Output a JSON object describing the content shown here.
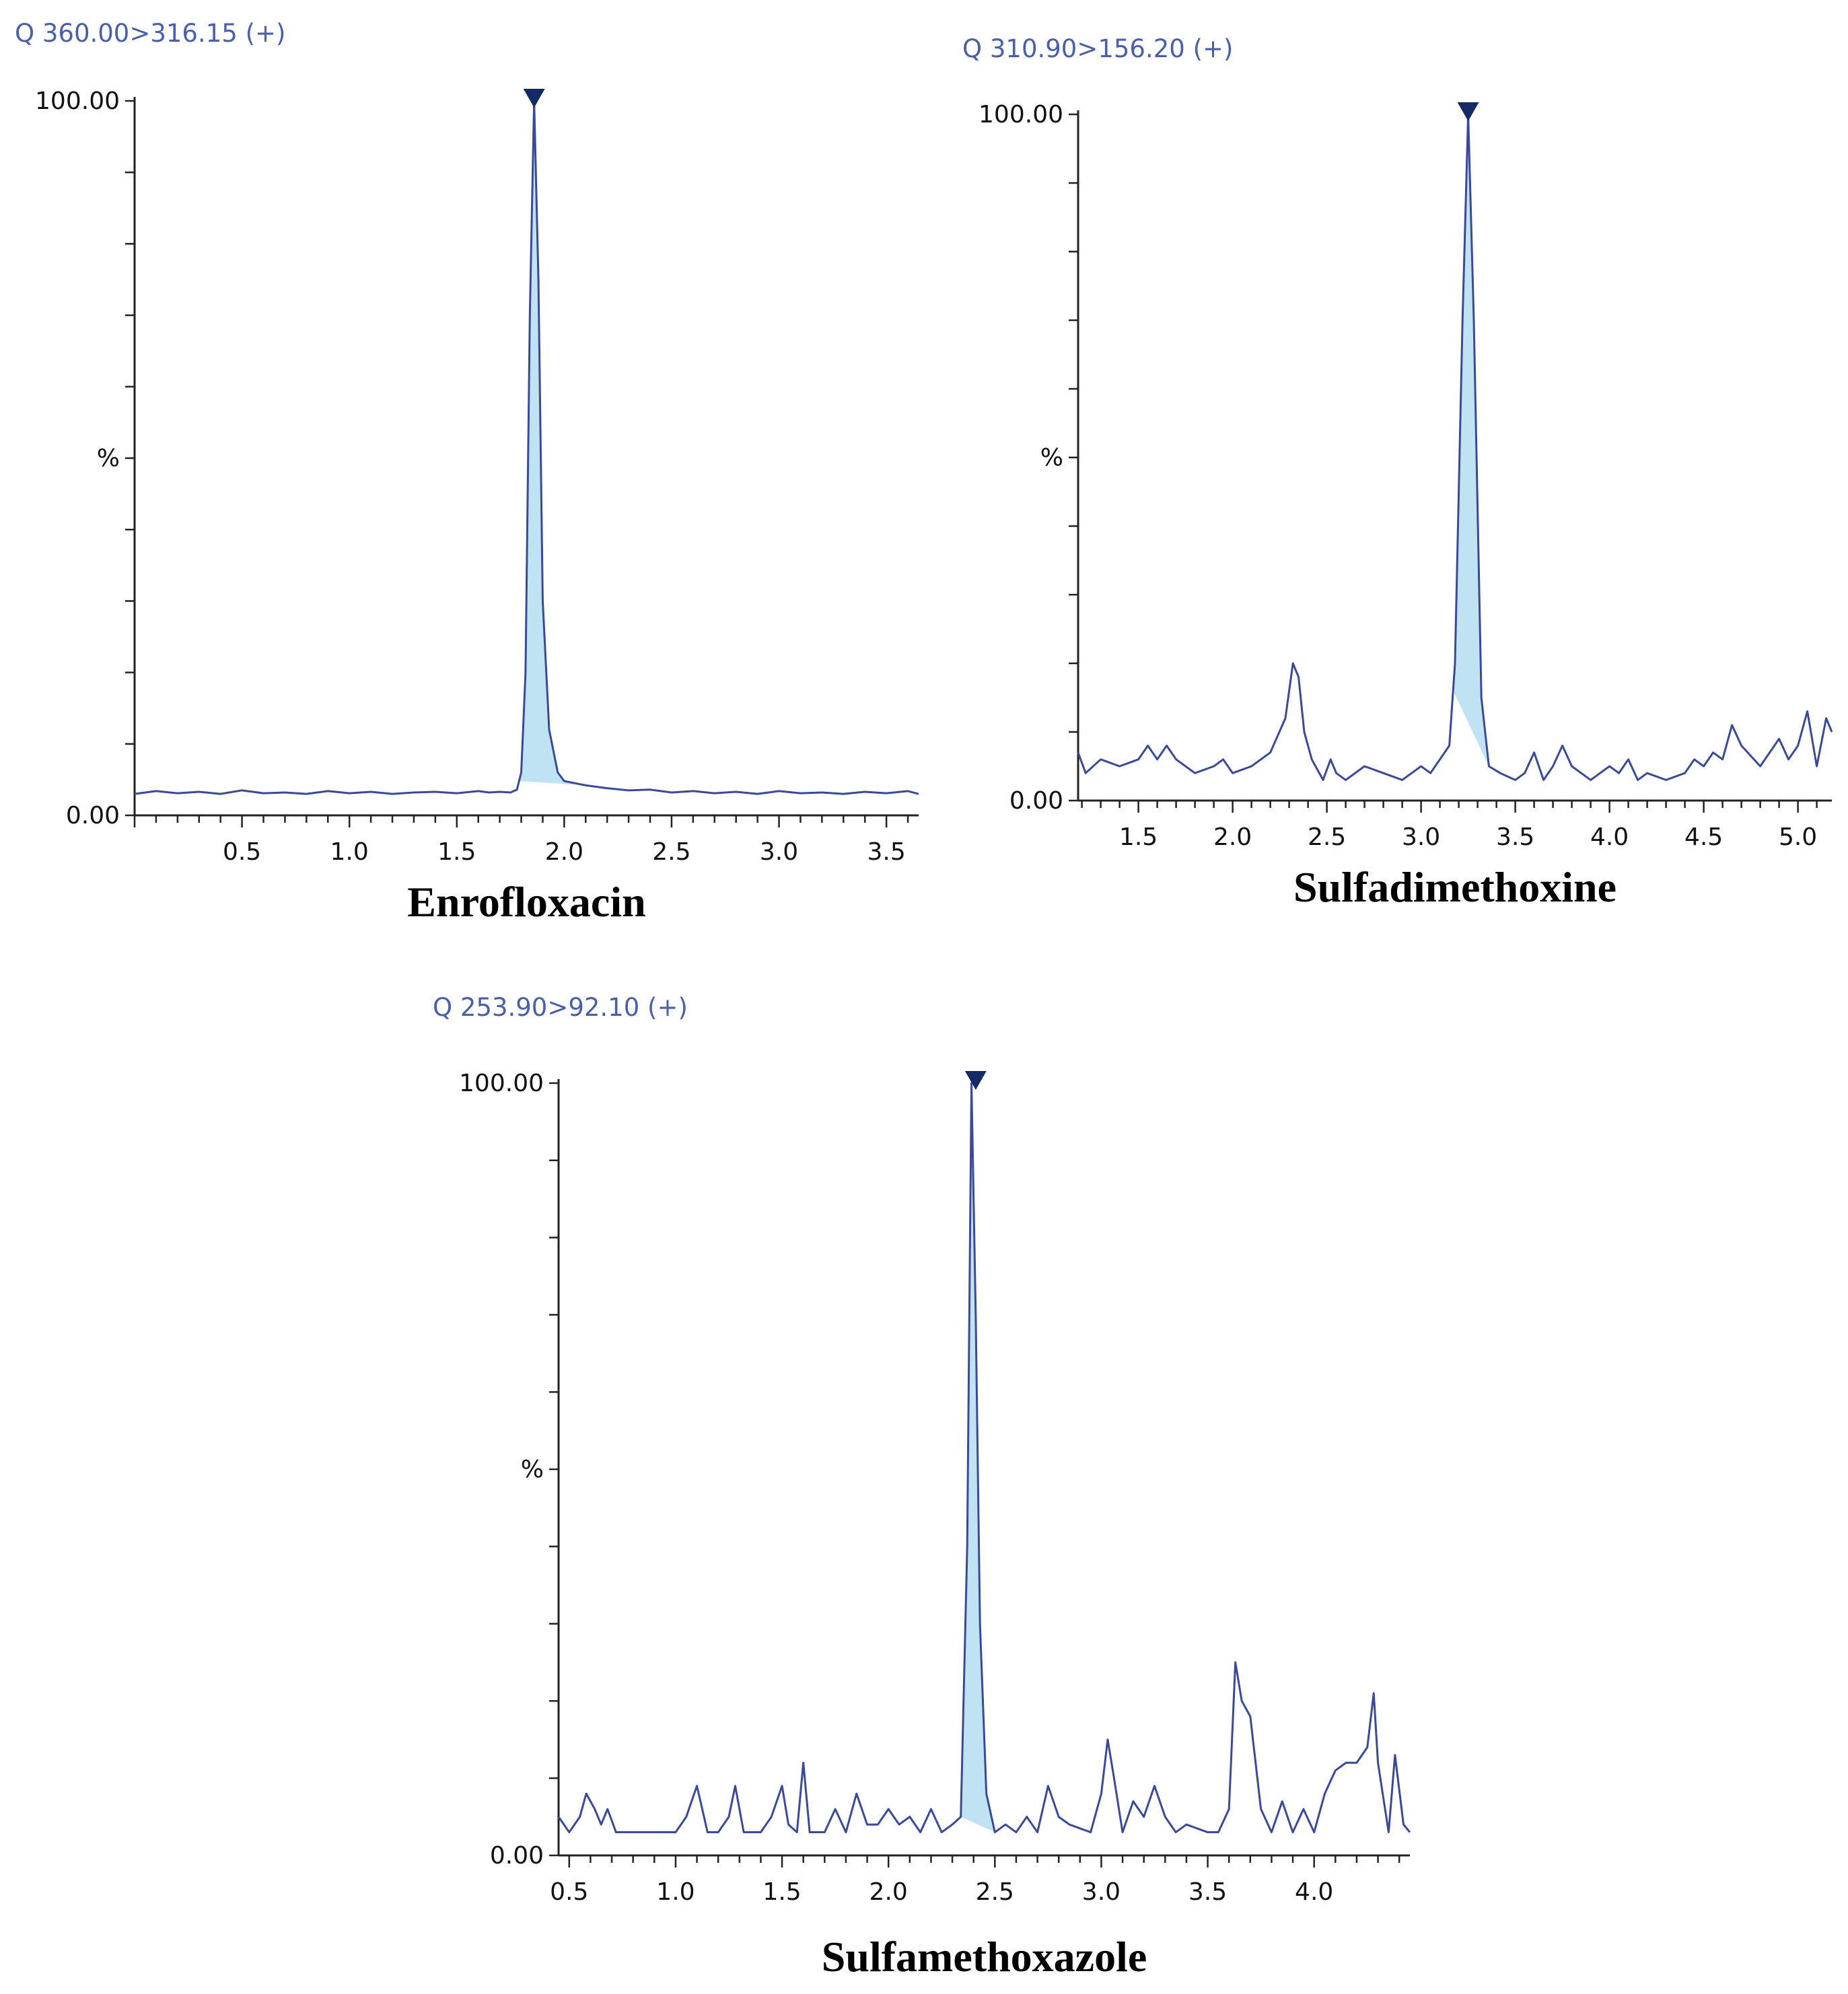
{
  "chart_data": [
    {
      "type": "line",
      "channel": "Q 360.00>316.15 (+)",
      "title": "Enrofloxacin",
      "ylabel": "%",
      "y_tick_labels": [
        "100.00",
        "0.00"
      ],
      "x_tick_labels": [
        "0.5",
        "1.0",
        "1.5",
        "2.0",
        "2.5",
        "3.0",
        "3.5"
      ],
      "xlim": [
        0.0,
        3.65
      ],
      "ylim": [
        0,
        100
      ],
      "peak_marker_x": 1.86,
      "peak_shaded_range": [
        1.79,
        2.1
      ],
      "series": [
        {
          "x": [
            0.0,
            0.1,
            0.2,
            0.3,
            0.4,
            0.5,
            0.6,
            0.7,
            0.8,
            0.9,
            1.0,
            1.1,
            1.2,
            1.3,
            1.4,
            1.5,
            1.6,
            1.65,
            1.7,
            1.75,
            1.78,
            1.8,
            1.82,
            1.84,
            1.86,
            1.88,
            1.9,
            1.93,
            1.97,
            2.0,
            2.05,
            2.1,
            2.15,
            2.2,
            2.3,
            2.4,
            2.5,
            2.6,
            2.7,
            2.8,
            2.9,
            3.0,
            3.1,
            3.2,
            3.3,
            3.4,
            3.5,
            3.6,
            3.65
          ],
          "y": [
            3.0,
            3.4,
            3.1,
            3.3,
            3.0,
            3.5,
            3.1,
            3.2,
            3.0,
            3.4,
            3.1,
            3.3,
            3.0,
            3.2,
            3.3,
            3.1,
            3.4,
            3.2,
            3.3,
            3.2,
            3.6,
            6,
            20,
            70,
            100,
            75,
            30,
            12,
            6,
            4.8,
            4.5,
            4.2,
            4.0,
            3.8,
            3.5,
            3.6,
            3.2,
            3.4,
            3.1,
            3.3,
            3.0,
            3.4,
            3.1,
            3.2,
            3.0,
            3.3,
            3.1,
            3.4,
            3.0
          ]
        }
      ]
    },
    {
      "type": "line",
      "channel": "Q 310.90>156.20 (+)",
      "title": "Sulfadimethoxine",
      "ylabel": "%",
      "y_tick_labels": [
        "100.00",
        "0.00"
      ],
      "x_tick_labels": [
        "1.5",
        "2.0",
        "2.5",
        "3.0",
        "3.5",
        "4.0",
        "4.5",
        "5.0"
      ],
      "xlim": [
        1.18,
        5.18
      ],
      "ylim": [
        0,
        100
      ],
      "peak_marker_x": 3.25,
      "peak_shaded_range": [
        3.17,
        3.36
      ],
      "series": [
        {
          "x": [
            1.18,
            1.22,
            1.3,
            1.4,
            1.5,
            1.55,
            1.6,
            1.65,
            1.7,
            1.8,
            1.9,
            1.95,
            2.0,
            2.1,
            2.2,
            2.28,
            2.32,
            2.35,
            2.38,
            2.42,
            2.48,
            2.52,
            2.55,
            2.6,
            2.7,
            2.8,
            2.9,
            2.95,
            3.0,
            3.05,
            3.1,
            3.15,
            3.18,
            3.22,
            3.25,
            3.28,
            3.32,
            3.36,
            3.42,
            3.5,
            3.55,
            3.6,
            3.65,
            3.7,
            3.75,
            3.8,
            3.9,
            4.0,
            4.05,
            4.1,
            4.15,
            4.2,
            4.3,
            4.4,
            4.45,
            4.5,
            4.55,
            4.6,
            4.65,
            4.7,
            4.8,
            4.85,
            4.9,
            4.95,
            5.0,
            5.05,
            5.1,
            5.15,
            5.18
          ],
          "y": [
            7,
            4,
            6,
            5,
            6,
            8,
            6,
            8,
            6,
            4,
            5,
            6,
            4,
            5,
            7,
            12,
            20,
            18,
            10,
            6,
            3,
            6,
            4,
            3,
            5,
            4,
            3,
            4,
            5,
            4,
            6,
            8,
            20,
            70,
            100,
            70,
            15,
            5,
            4,
            3,
            4,
            7,
            3,
            5,
            8,
            5,
            3,
            5,
            4,
            6,
            3,
            4,
            3,
            4,
            6,
            5,
            7,
            6,
            11,
            8,
            5,
            7,
            9,
            6,
            8,
            13,
            5,
            12,
            10
          ]
        }
      ]
    },
    {
      "type": "line",
      "channel": "Q 253.90>92.10 (+)",
      "title": "Sulfamethoxazole",
      "ylabel": "%",
      "y_tick_labels": [
        "100.00",
        "0.00"
      ],
      "x_tick_labels": [
        "0.5",
        "1.0",
        "1.5",
        "2.0",
        "2.5",
        "3.0",
        "3.5",
        "4.0"
      ],
      "xlim": [
        0.45,
        4.45
      ],
      "ylim": [
        0,
        100
      ],
      "peak_marker_x": 2.41,
      "peak_shaded_range": [
        2.34,
        2.5
      ],
      "series": [
        {
          "x": [
            0.45,
            0.5,
            0.55,
            0.58,
            0.62,
            0.65,
            0.68,
            0.72,
            0.78,
            0.9,
            1.0,
            1.05,
            1.1,
            1.15,
            1.2,
            1.25,
            1.28,
            1.32,
            1.4,
            1.45,
            1.5,
            1.53,
            1.57,
            1.6,
            1.63,
            1.7,
            1.75,
            1.8,
            1.85,
            1.9,
            1.95,
            2.0,
            2.05,
            2.1,
            2.15,
            2.2,
            2.25,
            2.3,
            2.34,
            2.37,
            2.39,
            2.41,
            2.43,
            2.46,
            2.5,
            2.55,
            2.6,
            2.65,
            2.7,
            2.75,
            2.8,
            2.85,
            2.95,
            3.0,
            3.03,
            3.06,
            3.1,
            3.15,
            3.2,
            3.25,
            3.3,
            3.35,
            3.4,
            3.5,
            3.55,
            3.6,
            3.63,
            3.66,
            3.7,
            3.75,
            3.8,
            3.85,
            3.9,
            3.95,
            4.0,
            4.05,
            4.1,
            4.15,
            4.2,
            4.25,
            4.28,
            4.3,
            4.35,
            4.38,
            4.42,
            4.45
          ],
          "y": [
            5,
            3,
            5,
            8,
            6,
            4,
            6,
            3,
            3,
            3,
            3,
            5,
            9,
            3,
            3,
            5,
            9,
            3,
            3,
            5,
            9,
            4,
            3,
            12,
            3,
            3,
            6,
            3,
            8,
            4,
            4,
            6,
            4,
            5,
            3,
            6,
            3,
            4,
            5,
            40,
            100,
            70,
            30,
            8,
            3,
            4,
            3,
            5,
            3,
            9,
            5,
            4,
            3,
            8,
            15,
            10,
            3,
            7,
            5,
            9,
            5,
            3,
            4,
            3,
            3,
            6,
            25,
            20,
            18,
            6,
            3,
            7,
            3,
            6,
            3,
            8,
            11,
            12,
            12,
            14,
            21,
            12,
            3,
            13,
            4,
            3
          ]
        }
      ]
    }
  ]
}
